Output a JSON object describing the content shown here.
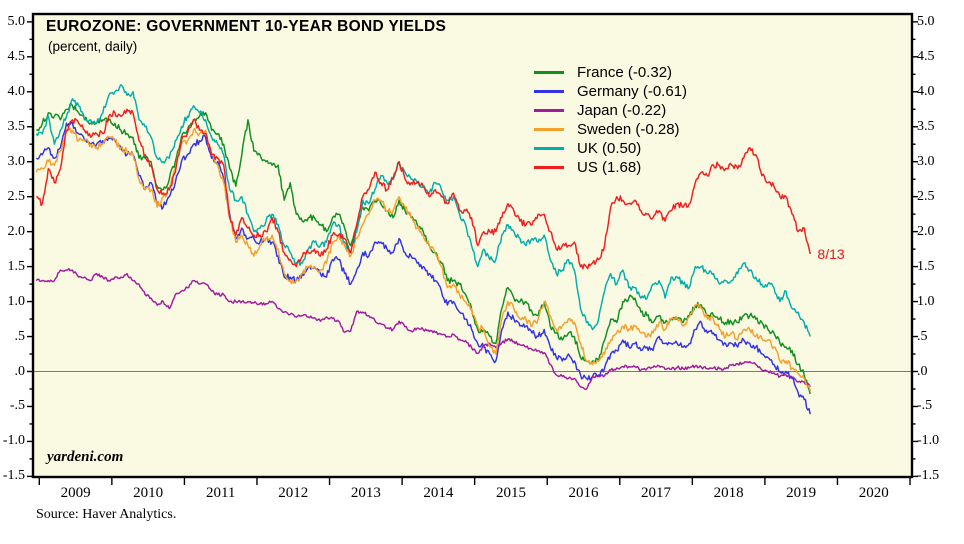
{
  "page": {
    "watermark": "yardeni.com",
    "source_note": "Source: Haver Analytics."
  },
  "chart_data": {
    "type": "line",
    "title": "EUROZONE: GOVERNMENT 10-YEAR BOND YIELDS",
    "subtitle": "(percent, daily)",
    "unit": "percent",
    "frequency": "daily",
    "ylim": [
      -1.5,
      5.0
    ],
    "y_tick_step": 0.5,
    "y_minor_tick_step": 0.25,
    "y_tick_labels": [
      "5.0",
      "4.5",
      "4.0",
      "3.5",
      "3.0",
      "2.5",
      "2.0",
      "1.5",
      "1.0",
      ".5",
      ".0",
      "-.5",
      "-1.0",
      "-1.5"
    ],
    "x_year_labels": [
      "2009",
      "2010",
      "2011",
      "2012",
      "2013",
      "2014",
      "2015",
      "2016",
      "2017",
      "2018",
      "2019",
      "2020"
    ],
    "x_start_decimal_year": 2008.958,
    "x_step_years": 0.0833333,
    "sampling": "monthly estimates of the daily series, Dec 2008 through Aug 13 2019",
    "grid": "horizontal zero line only",
    "legend_position": "inside top center-right",
    "background_color": "#faf9e1",
    "zero_line": 0.0,
    "annotation": {
      "text": "8/13",
      "x": 2019.655,
      "y": 1.68,
      "color": "#e81717"
    },
    "series": [
      {
        "name": "France",
        "legend_label": "France (-0.32)",
        "latest_value": -0.32,
        "color": "#0f8f1f",
        "values": [
          3.45,
          3.55,
          3.7,
          3.65,
          3.6,
          3.75,
          3.8,
          3.7,
          3.6,
          3.55,
          3.55,
          3.6,
          3.6,
          3.55,
          3.45,
          3.4,
          3.35,
          3.05,
          3.05,
          3.0,
          2.65,
          2.6,
          2.75,
          3.0,
          3.35,
          3.45,
          3.6,
          3.65,
          3.7,
          3.45,
          3.4,
          3.25,
          2.9,
          2.65,
          3.1,
          3.6,
          3.15,
          3.1,
          3.0,
          2.95,
          2.95,
          2.45,
          2.7,
          2.25,
          2.15,
          2.2,
          2.2,
          2.1,
          2.0,
          2.2,
          2.25,
          2.05,
          1.8,
          2.05,
          2.35,
          2.3,
          2.45,
          2.4,
          2.3,
          2.2,
          2.45,
          2.3,
          2.2,
          2.1,
          2.0,
          1.8,
          1.7,
          1.55,
          1.3,
          1.3,
          1.25,
          1.1,
          0.9,
          0.6,
          0.6,
          0.5,
          0.4,
          0.9,
          1.2,
          1.05,
          1.0,
          1.0,
          0.85,
          0.8,
          0.98,
          0.65,
          0.55,
          0.45,
          0.55,
          0.5,
          0.2,
          0.15,
          0.15,
          0.15,
          0.45,
          0.75,
          0.7,
          1.0,
          1.05,
          1.05,
          0.85,
          0.8,
          0.7,
          0.8,
          0.7,
          0.75,
          0.75,
          0.7,
          0.8,
          0.95,
          0.95,
          0.8,
          0.8,
          0.75,
          0.7,
          0.7,
          0.7,
          0.8,
          0.8,
          0.75,
          0.7,
          0.6,
          0.55,
          0.4,
          0.35,
          0.3,
          0.1,
          -0.05,
          -0.32
        ]
      },
      {
        "name": "Germany",
        "legend_label": "Germany (-0.61)",
        "latest_value": -0.61,
        "color": "#3232e6",
        "values": [
          3.05,
          3.1,
          3.2,
          3.05,
          3.2,
          3.55,
          3.55,
          3.4,
          3.3,
          3.25,
          3.25,
          3.3,
          3.35,
          3.3,
          3.2,
          3.1,
          3.1,
          2.8,
          2.6,
          2.7,
          2.4,
          2.35,
          2.5,
          2.7,
          3.0,
          3.1,
          3.25,
          3.3,
          3.35,
          3.05,
          3.0,
          2.75,
          2.25,
          1.9,
          2.05,
          1.9,
          1.9,
          1.85,
          1.9,
          1.85,
          1.65,
          1.35,
          1.35,
          1.3,
          1.4,
          1.5,
          1.5,
          1.4,
          1.35,
          1.6,
          1.6,
          1.4,
          1.25,
          1.45,
          1.7,
          1.65,
          1.85,
          1.85,
          1.75,
          1.7,
          1.9,
          1.7,
          1.65,
          1.55,
          1.5,
          1.4,
          1.3,
          1.15,
          0.95,
          1.0,
          0.85,
          0.75,
          0.6,
          0.4,
          0.35,
          0.25,
          0.15,
          0.6,
          0.85,
          0.75,
          0.65,
          0.65,
          0.55,
          0.5,
          0.6,
          0.35,
          0.2,
          0.15,
          0.25,
          0.15,
          -0.05,
          -0.1,
          -0.07,
          -0.05,
          0.05,
          0.25,
          0.3,
          0.45,
          0.35,
          0.4,
          0.3,
          0.35,
          0.3,
          0.5,
          0.4,
          0.4,
          0.4,
          0.35,
          0.4,
          0.6,
          0.7,
          0.55,
          0.55,
          0.45,
          0.4,
          0.4,
          0.35,
          0.45,
          0.4,
          0.35,
          0.25,
          0.2,
          0.1,
          0.0,
          0.0,
          -0.1,
          -0.3,
          -0.4,
          -0.61
        ]
      },
      {
        "name": "Japan",
        "legend_label": "Japan (-0.22)",
        "latest_value": -0.22,
        "color": "#a11ba1",
        "values": [
          1.3,
          1.3,
          1.3,
          1.3,
          1.45,
          1.45,
          1.45,
          1.35,
          1.35,
          1.3,
          1.4,
          1.35,
          1.3,
          1.35,
          1.35,
          1.4,
          1.3,
          1.25,
          1.1,
          1.05,
          0.95,
          1.0,
          0.9,
          1.1,
          1.15,
          1.2,
          1.3,
          1.25,
          1.25,
          1.15,
          1.1,
          1.1,
          1.0,
          1.0,
          1.0,
          1.0,
          0.98,
          0.97,
          0.97,
          1.0,
          0.9,
          0.85,
          0.82,
          0.78,
          0.8,
          0.78,
          0.77,
          0.72,
          0.78,
          0.76,
          0.72,
          0.56,
          0.58,
          0.86,
          0.85,
          0.8,
          0.73,
          0.68,
          0.62,
          0.6,
          0.72,
          0.64,
          0.58,
          0.62,
          0.6,
          0.57,
          0.56,
          0.53,
          0.5,
          0.53,
          0.46,
          0.44,
          0.34,
          0.26,
          0.36,
          0.4,
          0.34,
          0.41,
          0.46,
          0.43,
          0.38,
          0.35,
          0.31,
          0.3,
          0.27,
          0.1,
          -0.05,
          -0.07,
          -0.1,
          -0.1,
          -0.22,
          -0.25,
          -0.07,
          -0.07,
          -0.06,
          0.02,
          0.05,
          0.07,
          0.07,
          0.07,
          0.02,
          0.04,
          0.06,
          0.08,
          0.03,
          0.03,
          0.06,
          0.04,
          0.05,
          0.08,
          0.06,
          0.04,
          0.05,
          0.04,
          0.04,
          0.09,
          0.11,
          0.12,
          0.14,
          0.1,
          0.02,
          0.0,
          -0.02,
          -0.07,
          -0.05,
          -0.08,
          -0.15,
          -0.15,
          -0.22
        ]
      },
      {
        "name": "Sweden",
        "legend_label": "Sweden (-0.28)",
        "latest_value": -0.28,
        "color": "#f5a02d",
        "values": [
          2.85,
          2.9,
          3.0,
          2.95,
          3.15,
          3.45,
          3.45,
          3.3,
          3.3,
          3.25,
          3.2,
          3.25,
          3.35,
          3.3,
          3.2,
          3.15,
          3.1,
          2.75,
          2.6,
          2.6,
          2.35,
          2.5,
          2.6,
          2.9,
          3.25,
          3.3,
          3.45,
          3.4,
          3.45,
          3.1,
          2.95,
          2.7,
          2.2,
          1.85,
          1.95,
          1.8,
          1.65,
          1.8,
          1.9,
          1.95,
          1.75,
          1.4,
          1.3,
          1.3,
          1.4,
          1.5,
          1.5,
          1.45,
          1.55,
          1.85,
          1.95,
          1.8,
          1.65,
          1.9,
          2.1,
          2.25,
          2.45,
          2.45,
          2.3,
          2.3,
          2.5,
          2.35,
          2.2,
          2.05,
          1.95,
          1.8,
          1.7,
          1.5,
          1.2,
          1.25,
          1.1,
          1.0,
          0.9,
          0.65,
          0.6,
          0.35,
          0.25,
          0.75,
          1.0,
          0.9,
          0.75,
          0.75,
          0.65,
          0.75,
          1.0,
          0.8,
          0.6,
          0.65,
          0.75,
          0.7,
          0.4,
          0.15,
          0.1,
          0.15,
          0.25,
          0.45,
          0.55,
          0.65,
          0.6,
          0.65,
          0.55,
          0.5,
          0.55,
          0.7,
          0.6,
          0.75,
          0.75,
          0.65,
          0.78,
          0.95,
          0.9,
          0.75,
          0.75,
          0.6,
          0.5,
          0.55,
          0.45,
          0.6,
          0.6,
          0.5,
          0.47,
          0.45,
          0.35,
          0.15,
          0.15,
          0.05,
          -0.03,
          -0.1,
          -0.28
        ]
      },
      {
        "name": "UK",
        "legend_label": "UK (0.50)",
        "latest_value": 0.5,
        "color": "#00adad",
        "values": [
          3.4,
          3.4,
          3.65,
          3.25,
          3.45,
          3.65,
          3.9,
          3.8,
          3.6,
          3.6,
          3.55,
          3.7,
          3.95,
          4.0,
          4.1,
          3.95,
          4.0,
          3.6,
          3.5,
          3.35,
          3.05,
          3.0,
          3.05,
          3.3,
          3.5,
          3.65,
          3.8,
          3.7,
          3.6,
          3.35,
          3.25,
          3.1,
          2.6,
          2.45,
          2.5,
          2.25,
          2.0,
          2.05,
          2.15,
          2.25,
          2.1,
          1.8,
          1.7,
          1.55,
          1.55,
          1.75,
          1.85,
          1.8,
          1.85,
          2.1,
          2.1,
          1.85,
          1.7,
          2.0,
          2.45,
          2.4,
          2.6,
          2.8,
          2.7,
          2.75,
          3.0,
          2.85,
          2.75,
          2.7,
          2.65,
          2.55,
          2.7,
          2.6,
          2.45,
          2.5,
          2.25,
          2.1,
          1.8,
          1.5,
          1.75,
          1.6,
          1.6,
          1.95,
          2.1,
          2.0,
          1.9,
          1.8,
          1.9,
          1.85,
          1.95,
          1.6,
          1.4,
          1.45,
          1.6,
          1.45,
          0.9,
          0.7,
          0.6,
          0.75,
          1.15,
          1.4,
          1.25,
          1.45,
          1.2,
          1.2,
          1.05,
          1.05,
          1.25,
          1.3,
          1.05,
          1.35,
          1.35,
          1.25,
          1.2,
          1.5,
          1.5,
          1.4,
          1.4,
          1.25,
          1.3,
          1.3,
          1.4,
          1.55,
          1.45,
          1.35,
          1.25,
          1.25,
          1.2,
          1.0,
          1.15,
          0.9,
          0.85,
          0.7,
          0.5
        ]
      },
      {
        "name": "US",
        "legend_label": "US (1.68)",
        "latest_value": 1.68,
        "color": "#f01e1e",
        "values": [
          2.5,
          2.4,
          2.9,
          2.7,
          2.9,
          3.45,
          3.6,
          3.55,
          3.45,
          3.35,
          3.4,
          3.4,
          3.65,
          3.7,
          3.65,
          3.75,
          3.7,
          3.3,
          3.1,
          2.95,
          2.6,
          2.55,
          2.6,
          2.85,
          3.3,
          3.4,
          3.6,
          3.45,
          3.4,
          3.1,
          3.05,
          2.95,
          2.2,
          1.95,
          2.2,
          2.05,
          1.95,
          1.95,
          2.0,
          2.2,
          2.0,
          1.7,
          1.6,
          1.5,
          1.65,
          1.7,
          1.75,
          1.65,
          1.75,
          1.95,
          1.95,
          1.9,
          1.7,
          2.1,
          2.5,
          2.6,
          2.85,
          2.7,
          2.6,
          2.75,
          3.0,
          2.75,
          2.7,
          2.7,
          2.65,
          2.5,
          2.6,
          2.5,
          2.4,
          2.55,
          2.3,
          2.3,
          2.2,
          1.8,
          2.0,
          2.0,
          2.0,
          2.2,
          2.4,
          2.3,
          2.15,
          2.1,
          2.1,
          2.25,
          2.25,
          2.0,
          1.75,
          1.8,
          1.8,
          1.85,
          1.5,
          1.5,
          1.55,
          1.6,
          1.8,
          2.35,
          2.5,
          2.45,
          2.4,
          2.45,
          2.3,
          2.25,
          2.2,
          2.3,
          2.15,
          2.3,
          2.4,
          2.35,
          2.4,
          2.7,
          2.85,
          2.8,
          2.95,
          2.95,
          2.9,
          2.95,
          2.9,
          3.05,
          3.2,
          3.1,
          2.8,
          2.7,
          2.65,
          2.5,
          2.5,
          2.25,
          2.0,
          2.05,
          1.68
        ]
      }
    ]
  }
}
